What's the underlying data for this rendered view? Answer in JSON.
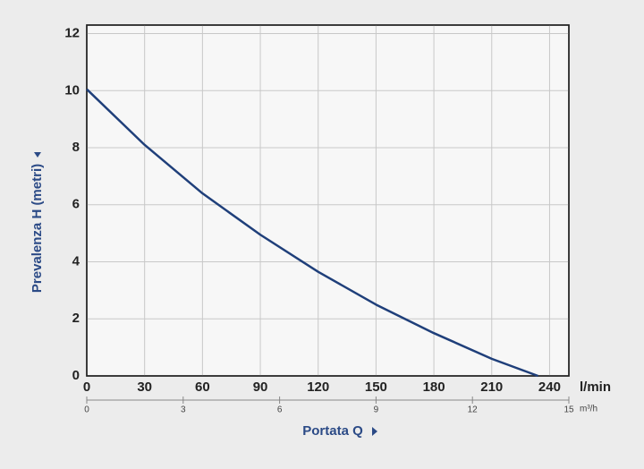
{
  "chart_data": {
    "type": "line",
    "x_label": "Portata Q",
    "y_label": "Prevalenza H (metri)",
    "x_unit": "l/min",
    "x2_unit": "m³/h",
    "series": [
      {
        "name": "H",
        "color": "#1f3f7a",
        "x": [
          0,
          30,
          60,
          90,
          120,
          150,
          180,
          210,
          234
        ],
        "values": [
          10.05,
          8.1,
          6.4,
          4.95,
          3.65,
          2.5,
          1.5,
          0.6,
          0
        ]
      }
    ],
    "xlim": [
      0,
      250
    ],
    "xticks": [
      0,
      30,
      60,
      90,
      120,
      150,
      180,
      210,
      240
    ],
    "x2lim": [
      0,
      15
    ],
    "x2ticks": [
      0,
      3,
      6,
      9,
      12,
      15
    ],
    "ylim": [
      0,
      12.3
    ],
    "yticks": [
      0,
      2,
      4,
      6,
      8,
      10,
      12
    ],
    "grid": true
  }
}
